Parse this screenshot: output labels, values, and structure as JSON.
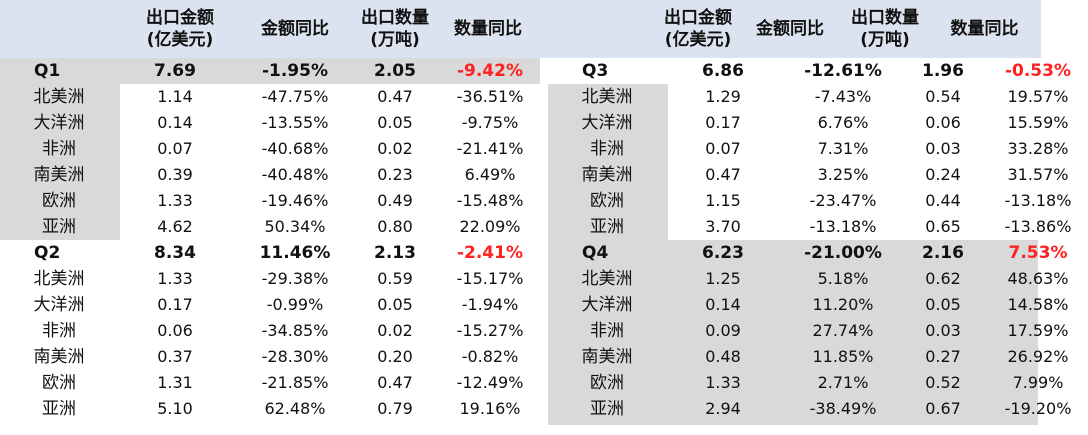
{
  "headers_left": [
    "",
    "出口金额\n(亿美元)",
    "金额同比",
    "出口数量\n(万吨)",
    "数量同比"
  ],
  "headers_right": [
    "",
    "出口金额\n(亿美元)",
    "金额同比",
    "出口数量\n(万吨)",
    "数量同比"
  ],
  "colors": {
    "header_bg": "#dce3f0",
    "shade": "#d9d9d9",
    "highlight_red": "#ff2020"
  },
  "q1": {
    "summary": [
      "Q1",
      "7.69",
      "-1.95%",
      "2.05",
      "-9.42%"
    ],
    "rows": [
      [
        "北美洲",
        "1.14",
        "-47.75%",
        "0.47",
        "-36.51%"
      ],
      [
        "大洋洲",
        "0.14",
        "-13.55%",
        "0.05",
        "-9.75%"
      ],
      [
        "非洲",
        "0.07",
        "-40.68%",
        "0.02",
        "-21.41%"
      ],
      [
        "南美洲",
        "0.39",
        "-40.48%",
        "0.23",
        "6.49%"
      ],
      [
        "欧洲",
        "1.33",
        "-19.46%",
        "0.49",
        "-15.48%"
      ],
      [
        "亚洲",
        "4.62",
        "50.34%",
        "0.80",
        "22.09%"
      ]
    ]
  },
  "q2": {
    "summary": [
      "Q2",
      "8.34",
      "11.46%",
      "2.13",
      "-2.41%"
    ],
    "rows": [
      [
        "北美洲",
        "1.33",
        "-29.38%",
        "0.59",
        "-15.17%"
      ],
      [
        "大洋洲",
        "0.17",
        "-0.99%",
        "0.05",
        "-1.94%"
      ],
      [
        "非洲",
        "0.06",
        "-34.85%",
        "0.02",
        "-15.27%"
      ],
      [
        "南美洲",
        "0.37",
        "-28.30%",
        "0.20",
        "-0.82%"
      ],
      [
        "欧洲",
        "1.31",
        "-21.85%",
        "0.47",
        "-12.49%"
      ],
      [
        "亚洲",
        "5.10",
        "62.48%",
        "0.79",
        "19.16%"
      ]
    ]
  },
  "q3": {
    "summary": [
      "Q3",
      "6.86",
      "-12.61%",
      "1.96",
      "-0.53%"
    ],
    "rows": [
      [
        "北美洲",
        "1.29",
        "-7.43%",
        "0.54",
        "19.57%"
      ],
      [
        "大洋洲",
        "0.17",
        "6.76%",
        "0.06",
        "15.59%"
      ],
      [
        "非洲",
        "0.07",
        "7.31%",
        "0.03",
        "33.28%"
      ],
      [
        "南美洲",
        "0.47",
        "3.25%",
        "0.24",
        "31.57%"
      ],
      [
        "欧洲",
        "1.15",
        "-23.47%",
        "0.44",
        "-13.18%"
      ],
      [
        "亚洲",
        "3.70",
        "-13.18%",
        "0.65",
        "-13.86%"
      ]
    ]
  },
  "q4": {
    "summary": [
      "Q4",
      "6.23",
      "-21.00%",
      "2.16",
      "7.53%"
    ],
    "rows": [
      [
        "北美洲",
        "1.25",
        "5.18%",
        "0.62",
        "48.63%"
      ],
      [
        "大洋洲",
        "0.14",
        "11.20%",
        "0.05",
        "14.58%"
      ],
      [
        "非洲",
        "0.09",
        "27.74%",
        "0.03",
        "17.59%"
      ],
      [
        "南美洲",
        "0.48",
        "11.85%",
        "0.27",
        "26.92%"
      ],
      [
        "欧洲",
        "1.33",
        "2.71%",
        "0.52",
        "7.99%"
      ],
      [
        "亚洲",
        "2.94",
        "-38.49%",
        "0.67",
        "-19.20%"
      ]
    ]
  }
}
